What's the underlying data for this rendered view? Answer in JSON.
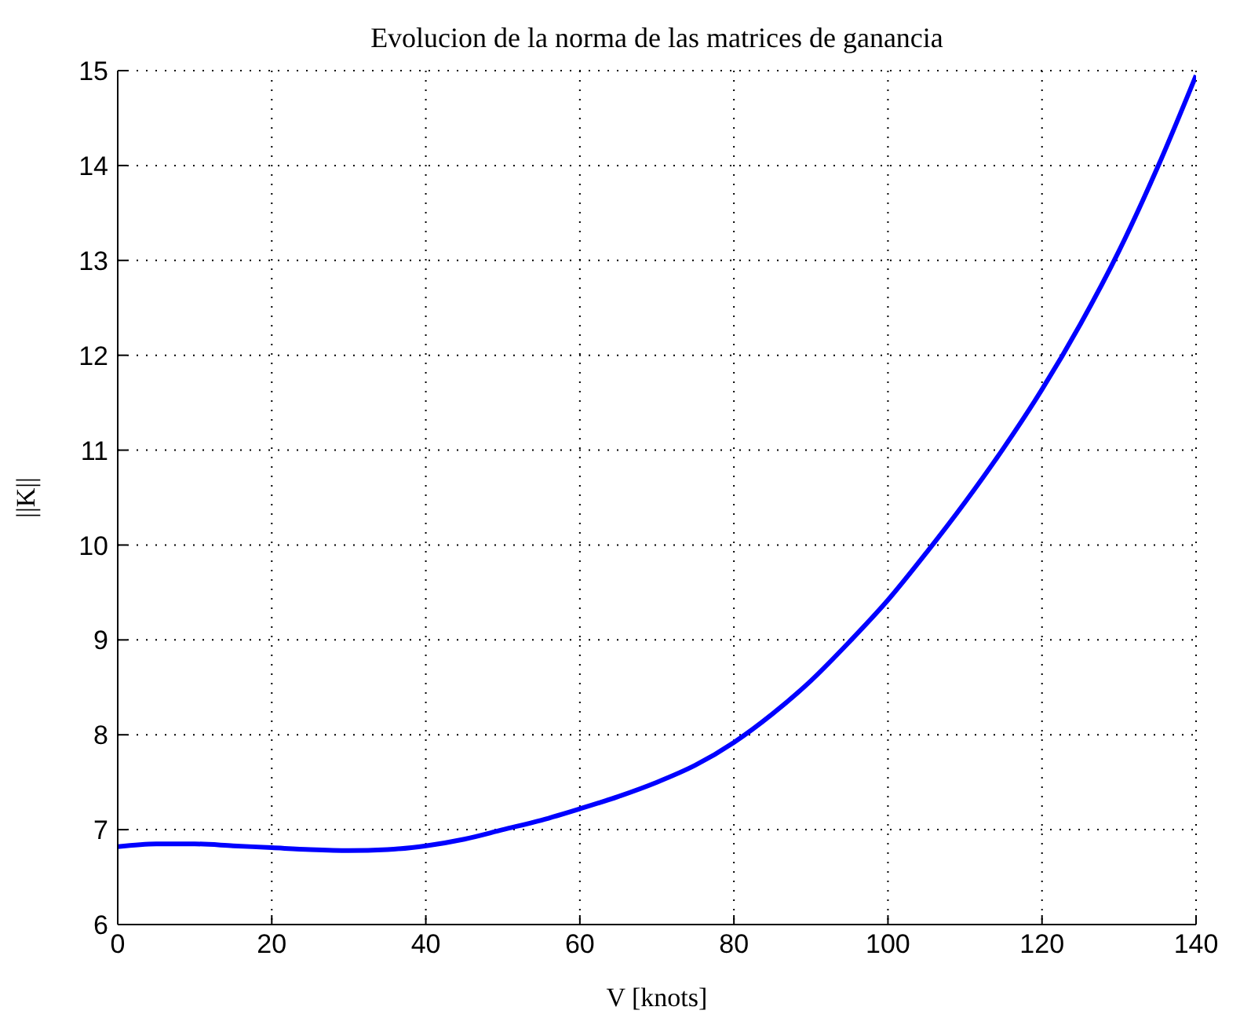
{
  "chart_data": {
    "type": "line",
    "title": "Evolucion de la norma de las matrices de ganancia",
    "xlabel": "V [knots]",
    "ylabel": "||K||",
    "x": [
      0,
      5,
      10,
      15,
      20,
      25,
      30,
      35,
      40,
      45,
      50,
      55,
      60,
      65,
      70,
      75,
      80,
      85,
      90,
      95,
      100,
      105,
      110,
      115,
      120,
      125,
      130,
      135,
      140
    ],
    "series": [
      {
        "color": "#0000ff",
        "values": [
          6.82,
          6.85,
          6.85,
          6.83,
          6.81,
          6.79,
          6.78,
          6.79,
          6.83,
          6.9,
          7.0,
          7.1,
          7.22,
          7.35,
          7.5,
          7.68,
          7.92,
          8.22,
          8.57,
          8.98,
          9.42,
          9.92,
          10.45,
          11.02,
          11.64,
          12.33,
          13.1,
          13.98,
          14.95
        ]
      }
    ],
    "xlim": [
      0,
      140
    ],
    "xticks": [
      0,
      20,
      40,
      60,
      80,
      100,
      120,
      140
    ],
    "ylim": [
      6,
      15
    ],
    "yticks": [
      6,
      7,
      8,
      9,
      10,
      11,
      12,
      13,
      14,
      15
    ],
    "grid": true,
    "line_style": "solid",
    "marker": "none"
  }
}
